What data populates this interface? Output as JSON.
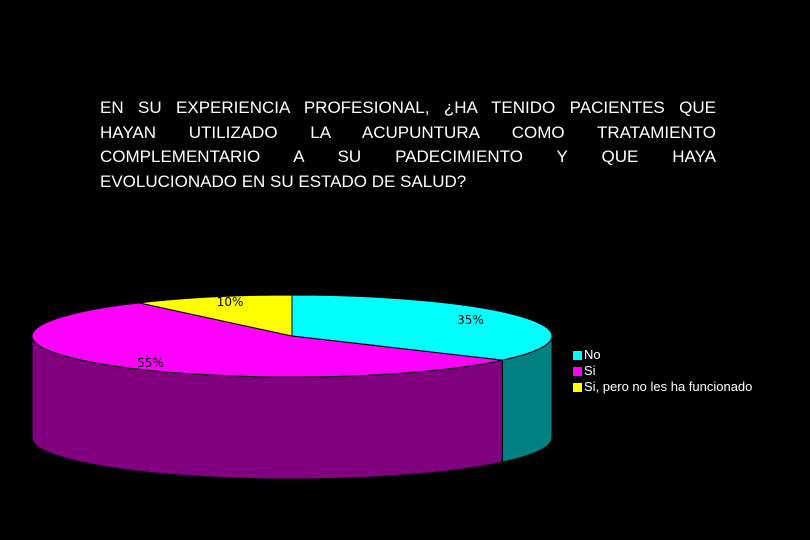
{
  "question": {
    "lines": [
      "EN SU EXPERIENCIA PROFESIONAL, ¿HA TENIDO PACIENTES QUE",
      "HAYAN UTILIZADO LA ACUPUNTURA COMO TRATAMIENTO",
      "COMPLEMENTARIO A SU PADECIMIENTO Y QUE HAYA",
      "EVOLUCIONADO EN SU ESTADO DE SALUD?"
    ]
  },
  "chart_data": {
    "type": "pie",
    "style": "3d",
    "title": "EN SU EXPERIENCIA PROFESIONAL, ¿HA TENIDO PACIENTES QUE HAYAN UTILIZADO LA ACUPUNTURA COMO TRATAMIENTO COMPLEMENTARIO A SU PADECIMIENTO Y QUE HAYA EVOLUCIONADO EN SU ESTADO DE SALUD?",
    "legend_position": "right",
    "slices": [
      {
        "label": "No",
        "value": 35,
        "display": "35%",
        "color": "#00ffff",
        "side_color": "#008080"
      },
      {
        "label": "Si",
        "value": 55,
        "display": "55%",
        "color": "#ff00ff",
        "side_color": "#800080"
      },
      {
        "label": "Si, pero no les ha funcionado",
        "value": 10,
        "display": "10%",
        "color": "#ffff00",
        "side_color": "#808000"
      }
    ]
  }
}
